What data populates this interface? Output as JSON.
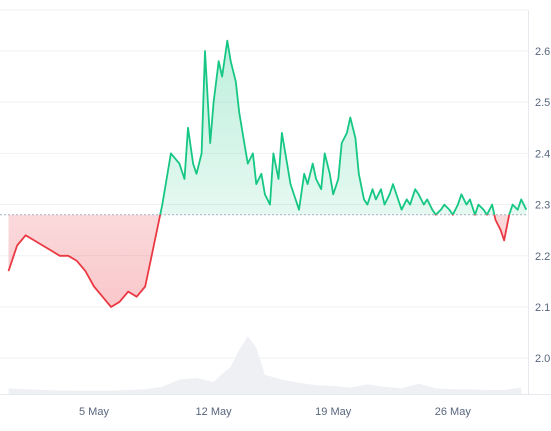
{
  "chart_data": {
    "type": "area",
    "baseline": 2.28,
    "y_ticks": [
      "2.0",
      "2.1",
      "2.2",
      "2.3",
      "2.4",
      "2.5",
      "2.6"
    ],
    "y_tick_values": [
      2.0,
      2.1,
      2.2,
      2.3,
      2.4,
      2.5,
      2.6
    ],
    "x_ticks": [
      "5 May",
      "12 May",
      "19 May",
      "26 May"
    ],
    "x_tick_days": [
      5,
      12,
      19,
      26
    ],
    "ylim": [
      1.93,
      2.68
    ],
    "xlim_days": [
      -0.5,
      30.4
    ],
    "grid": true,
    "series": [
      {
        "x_days": [
          0.0,
          0.5,
          1.0,
          1.5,
          2.0,
          2.5,
          3.0,
          3.5,
          4.0,
          4.5,
          5.0,
          5.5,
          6.0,
          6.5,
          7.0,
          7.5,
          8.0,
          8.5,
          9.0,
          9.5,
          10.0,
          10.3,
          10.5,
          10.8,
          11.0,
          11.3,
          11.5,
          11.8,
          12.0,
          12.3,
          12.5,
          12.8,
          13.0,
          13.3,
          13.5,
          13.8,
          14.0,
          14.3,
          14.5,
          14.8,
          15.0,
          15.3,
          15.5,
          15.8,
          16.0,
          16.3,
          16.5,
          16.8,
          17.0,
          17.3,
          17.5,
          17.8,
          18.0,
          18.3,
          18.5,
          18.8,
          19.0,
          19.3,
          19.5,
          19.8,
          20.0,
          20.3,
          20.5,
          20.8,
          21.0,
          21.3,
          21.5,
          21.8,
          22.0,
          22.3,
          22.5,
          22.8,
          23.0,
          23.3,
          23.5,
          23.8,
          24.0,
          24.3,
          24.5,
          24.8,
          25.0,
          25.3,
          25.5,
          25.8,
          26.0,
          26.3,
          26.5,
          26.8,
          27.0,
          27.3,
          27.5,
          27.8,
          28.0,
          28.3,
          28.5,
          28.8,
          29.0,
          29.3,
          29.5,
          29.8,
          30.0,
          30.3
        ],
        "values": [
          2.17,
          2.22,
          2.24,
          2.23,
          2.22,
          2.21,
          2.2,
          2.2,
          2.19,
          2.17,
          2.14,
          2.12,
          2.1,
          2.11,
          2.13,
          2.12,
          2.14,
          2.22,
          2.3,
          2.4,
          2.38,
          2.35,
          2.45,
          2.38,
          2.36,
          2.4,
          2.6,
          2.42,
          2.5,
          2.58,
          2.55,
          2.62,
          2.58,
          2.54,
          2.48,
          2.42,
          2.38,
          2.4,
          2.34,
          2.36,
          2.32,
          2.3,
          2.4,
          2.35,
          2.44,
          2.38,
          2.34,
          2.31,
          2.29,
          2.36,
          2.34,
          2.38,
          2.35,
          2.33,
          2.4,
          2.36,
          2.32,
          2.35,
          2.42,
          2.44,
          2.47,
          2.43,
          2.36,
          2.31,
          2.3,
          2.33,
          2.31,
          2.33,
          2.3,
          2.32,
          2.34,
          2.31,
          2.29,
          2.31,
          2.3,
          2.33,
          2.32,
          2.3,
          2.31,
          2.29,
          2.28,
          2.29,
          2.3,
          2.29,
          2.28,
          2.3,
          2.32,
          2.3,
          2.31,
          2.28,
          2.3,
          2.29,
          2.28,
          2.3,
          2.27,
          2.25,
          2.23,
          2.28,
          2.3,
          2.29,
          2.31,
          2.29
        ]
      },
      {
        "x_days": [
          0.0,
          2.0,
          4.0,
          6.0,
          8.0,
          9.0,
          10.0,
          11.0,
          12.0,
          12.5,
          13.0,
          13.5,
          14.0,
          14.5,
          15.0,
          16.0,
          17.0,
          18.0,
          19.0,
          20.0,
          21.0,
          22.0,
          23.0,
          24.0,
          25.0,
          26.0,
          27.0,
          28.0,
          29.0,
          30.0
        ],
        "values": [
          7,
          5,
          4,
          4,
          6,
          9,
          18,
          20,
          15,
          25,
          34,
          55,
          72,
          58,
          24,
          18,
          14,
          11,
          10,
          8,
          12,
          9,
          7,
          13,
          7,
          6,
          6,
          5,
          5,
          8
        ]
      }
    ]
  }
}
